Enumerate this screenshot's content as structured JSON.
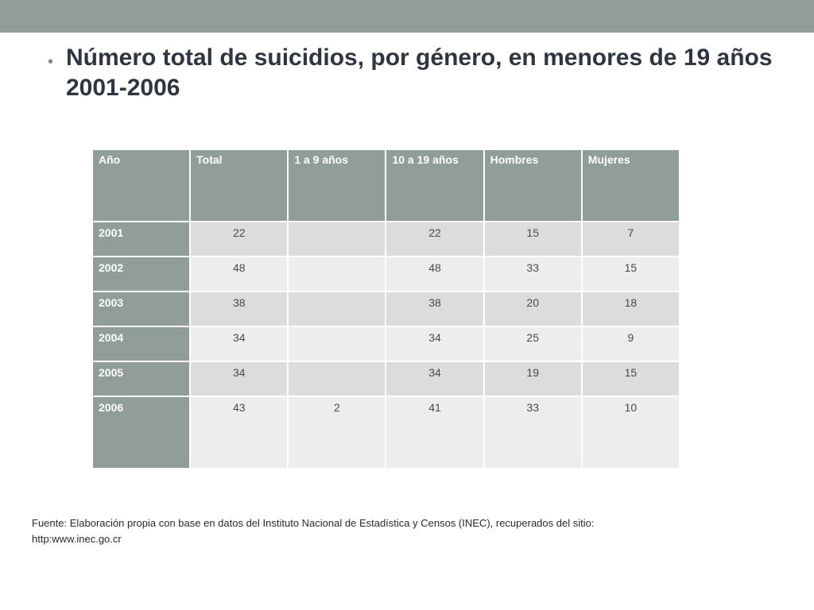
{
  "slide": {
    "bullet": "•",
    "title": "Número total de suicidios, por género, en menores de 19 años 2001-2006"
  },
  "table": {
    "headers": [
      "Año",
      "Total",
      "1 a 9 años",
      "10 a 19 años",
      "Hombres",
      "Mujeres"
    ],
    "rows": [
      [
        "2001",
        "22",
        "",
        "22",
        "15",
        "7"
      ],
      [
        "2002",
        "48",
        "",
        "48",
        "33",
        "15"
      ],
      [
        "2003",
        "38",
        "",
        "38",
        "20",
        "18"
      ],
      [
        "2004",
        "34",
        "",
        "34",
        "25",
        "9"
      ],
      [
        "2005",
        "34",
        "",
        "34",
        "19",
        "15"
      ],
      [
        "2006",
        "43",
        "2",
        "41",
        "33",
        "10"
      ]
    ]
  },
  "source": {
    "line1": "Fuente: Elaboración propia con base en datos del Instituto Nacional de Estadística y Censos (INEC), recuperados del sitio:",
    "line2": "http:www.inec.go.cr"
  },
  "colors": {
    "header_bg": "#909e97",
    "row_light": "#eceeed",
    "row_dark": "#dbdcdb"
  }
}
